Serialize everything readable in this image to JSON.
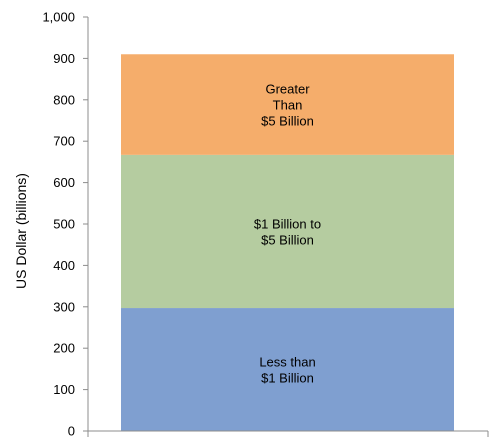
{
  "chart_data": {
    "type": "bar",
    "stacked": true,
    "title": "",
    "xlabel": "",
    "ylabel": "US Dollar (billions)",
    "ylim": [
      0,
      1000
    ],
    "yticks": [
      0,
      100,
      200,
      300,
      400,
      500,
      600,
      700,
      800,
      900,
      1000
    ],
    "ytick_labels": [
      "0",
      "100",
      "200",
      "300",
      "400",
      "500",
      "600",
      "700",
      "800",
      "900",
      "1,000"
    ],
    "grid": false,
    "legend": "none",
    "categories": [
      ""
    ],
    "series": [
      {
        "name": "Less than $1 Billion",
        "label_lines": [
          "Less than",
          "$1 Billion"
        ],
        "values": [
          297
        ],
        "color": "#7f9fd0"
      },
      {
        "name": "$1 Billion to $5 Billion",
        "label_lines": [
          "$1 Billion to",
          "$5 Billion"
        ],
        "values": [
          370
        ],
        "color": "#b5cca0"
      },
      {
        "name": "Greater Than $5 Billion",
        "label_lines": [
          "Greater",
          "Than",
          "$5 Billion"
        ],
        "values": [
          243
        ],
        "color": "#f5ad6b"
      }
    ]
  }
}
